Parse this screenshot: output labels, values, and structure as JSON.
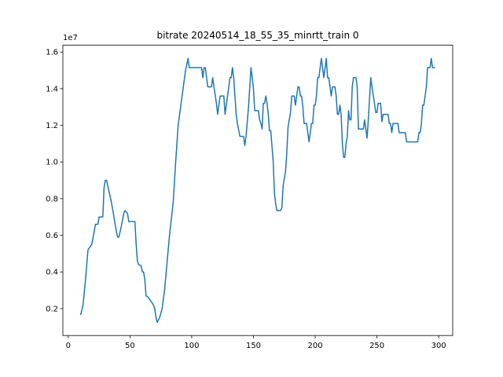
{
  "chart_data": {
    "type": "line",
    "title": "bitrate 20240514_18_55_35_minrtt_train 0",
    "y_offset_label": "1e7",
    "color": "#1f77b4",
    "xlim": [
      -4.35,
      311.35
    ],
    "xticks": [
      0,
      50,
      100,
      150,
      200,
      250,
      300
    ],
    "ylim": [
      0.053,
      1.637
    ],
    "yticks": [
      0.2,
      0.4,
      0.6,
      0.8,
      {
        "value": 1.0,
        "label": "1.0"
      },
      1.2,
      1.4,
      1.6
    ],
    "grid": false,
    "x": [
      10,
      12,
      14,
      16,
      19,
      21,
      22,
      24,
      25,
      28,
      29,
      30,
      31,
      33,
      35,
      37,
      39,
      40,
      41,
      43,
      45,
      46,
      48,
      49,
      54,
      55,
      56,
      57,
      59,
      60,
      61,
      62,
      63,
      65,
      67,
      69,
      70,
      71,
      72,
      74,
      76,
      78,
      80,
      82,
      85,
      87,
      89,
      91,
      93,
      95,
      97,
      98,
      108,
      109,
      110,
      111,
      113,
      116,
      117,
      118,
      120,
      121,
      123,
      126,
      127,
      129,
      131,
      132,
      133,
      134,
      136,
      137,
      139,
      142,
      143,
      144,
      146,
      148,
      149,
      150,
      151,
      154,
      155,
      156,
      157,
      158,
      159,
      160,
      161,
      162,
      163,
      164,
      166,
      167,
      168,
      169,
      172,
      173,
      174,
      176,
      177,
      178,
      180,
      181,
      183,
      184,
      185,
      186,
      187,
      188,
      189,
      190,
      191,
      193,
      194,
      195,
      196,
      197,
      198,
      199,
      200,
      201,
      202,
      203,
      204,
      205,
      206,
      207,
      208,
      209,
      210,
      211,
      212,
      213,
      214,
      216,
      217,
      218,
      219,
      220,
      221,
      222,
      223,
      224,
      225,
      226,
      227,
      228,
      229,
      230,
      231,
      233,
      234,
      235,
      239,
      240,
      241,
      242,
      243,
      245,
      246,
      248,
      249,
      250,
      251,
      253,
      254,
      255,
      259,
      260,
      261,
      262,
      263,
      267,
      268,
      273,
      274,
      283,
      284,
      285,
      286,
      287,
      288,
      289,
      290,
      291,
      293,
      294,
      295,
      297
    ],
    "series": [
      {
        "name": "bitrate",
        "values": [
          0.165,
          0.22,
          0.36,
          0.52,
          0.55,
          0.62,
          0.66,
          0.66,
          0.7,
          0.7,
          0.86,
          0.9,
          0.9,
          0.84,
          0.78,
          0.7,
          0.62,
          0.59,
          0.59,
          0.65,
          0.72,
          0.735,
          0.72,
          0.675,
          0.675,
          0.55,
          0.46,
          0.44,
          0.435,
          0.4,
          0.4,
          0.36,
          0.27,
          0.26,
          0.24,
          0.22,
          0.2,
          0.155,
          0.125,
          0.15,
          0.2,
          0.3,
          0.45,
          0.6,
          0.78,
          1.0,
          1.2,
          1.3,
          1.4,
          1.5,
          1.565,
          1.515,
          1.515,
          1.46,
          1.515,
          1.515,
          1.41,
          1.41,
          1.46,
          1.41,
          1.32,
          1.26,
          1.36,
          1.36,
          1.26,
          1.36,
          1.46,
          1.46,
          1.515,
          1.46,
          1.26,
          1.21,
          1.14,
          1.14,
          1.09,
          1.14,
          1.3,
          1.515,
          1.46,
          1.4,
          1.28,
          1.28,
          1.23,
          1.21,
          1.18,
          1.32,
          1.32,
          1.36,
          1.32,
          1.26,
          1.17,
          1.17,
          1.0,
          0.83,
          0.77,
          0.735,
          0.735,
          0.75,
          0.87,
          0.95,
          1.05,
          1.19,
          1.27,
          1.36,
          1.36,
          1.31,
          1.36,
          1.41,
          1.41,
          1.36,
          1.36,
          1.3,
          1.21,
          1.21,
          1.16,
          1.11,
          1.16,
          1.21,
          1.21,
          1.31,
          1.31,
          1.36,
          1.46,
          1.46,
          1.515,
          1.565,
          1.51,
          1.46,
          1.515,
          1.565,
          1.46,
          1.46,
          1.41,
          1.36,
          1.41,
          1.41,
          1.36,
          1.26,
          1.26,
          1.31,
          1.26,
          1.1,
          1.025,
          1.025,
          1.1,
          1.14,
          1.28,
          1.23,
          1.23,
          1.41,
          1.46,
          1.46,
          1.41,
          1.18,
          1.18,
          1.23,
          1.18,
          1.13,
          1.23,
          1.46,
          1.41,
          1.32,
          1.27,
          1.27,
          1.32,
          1.32,
          1.22,
          1.26,
          1.26,
          1.21,
          1.21,
          1.16,
          1.21,
          1.21,
          1.16,
          1.16,
          1.11,
          1.11,
          1.16,
          1.16,
          1.21,
          1.31,
          1.31,
          1.36,
          1.41,
          1.515,
          1.515,
          1.565,
          1.515,
          1.515
        ]
      }
    ]
  }
}
